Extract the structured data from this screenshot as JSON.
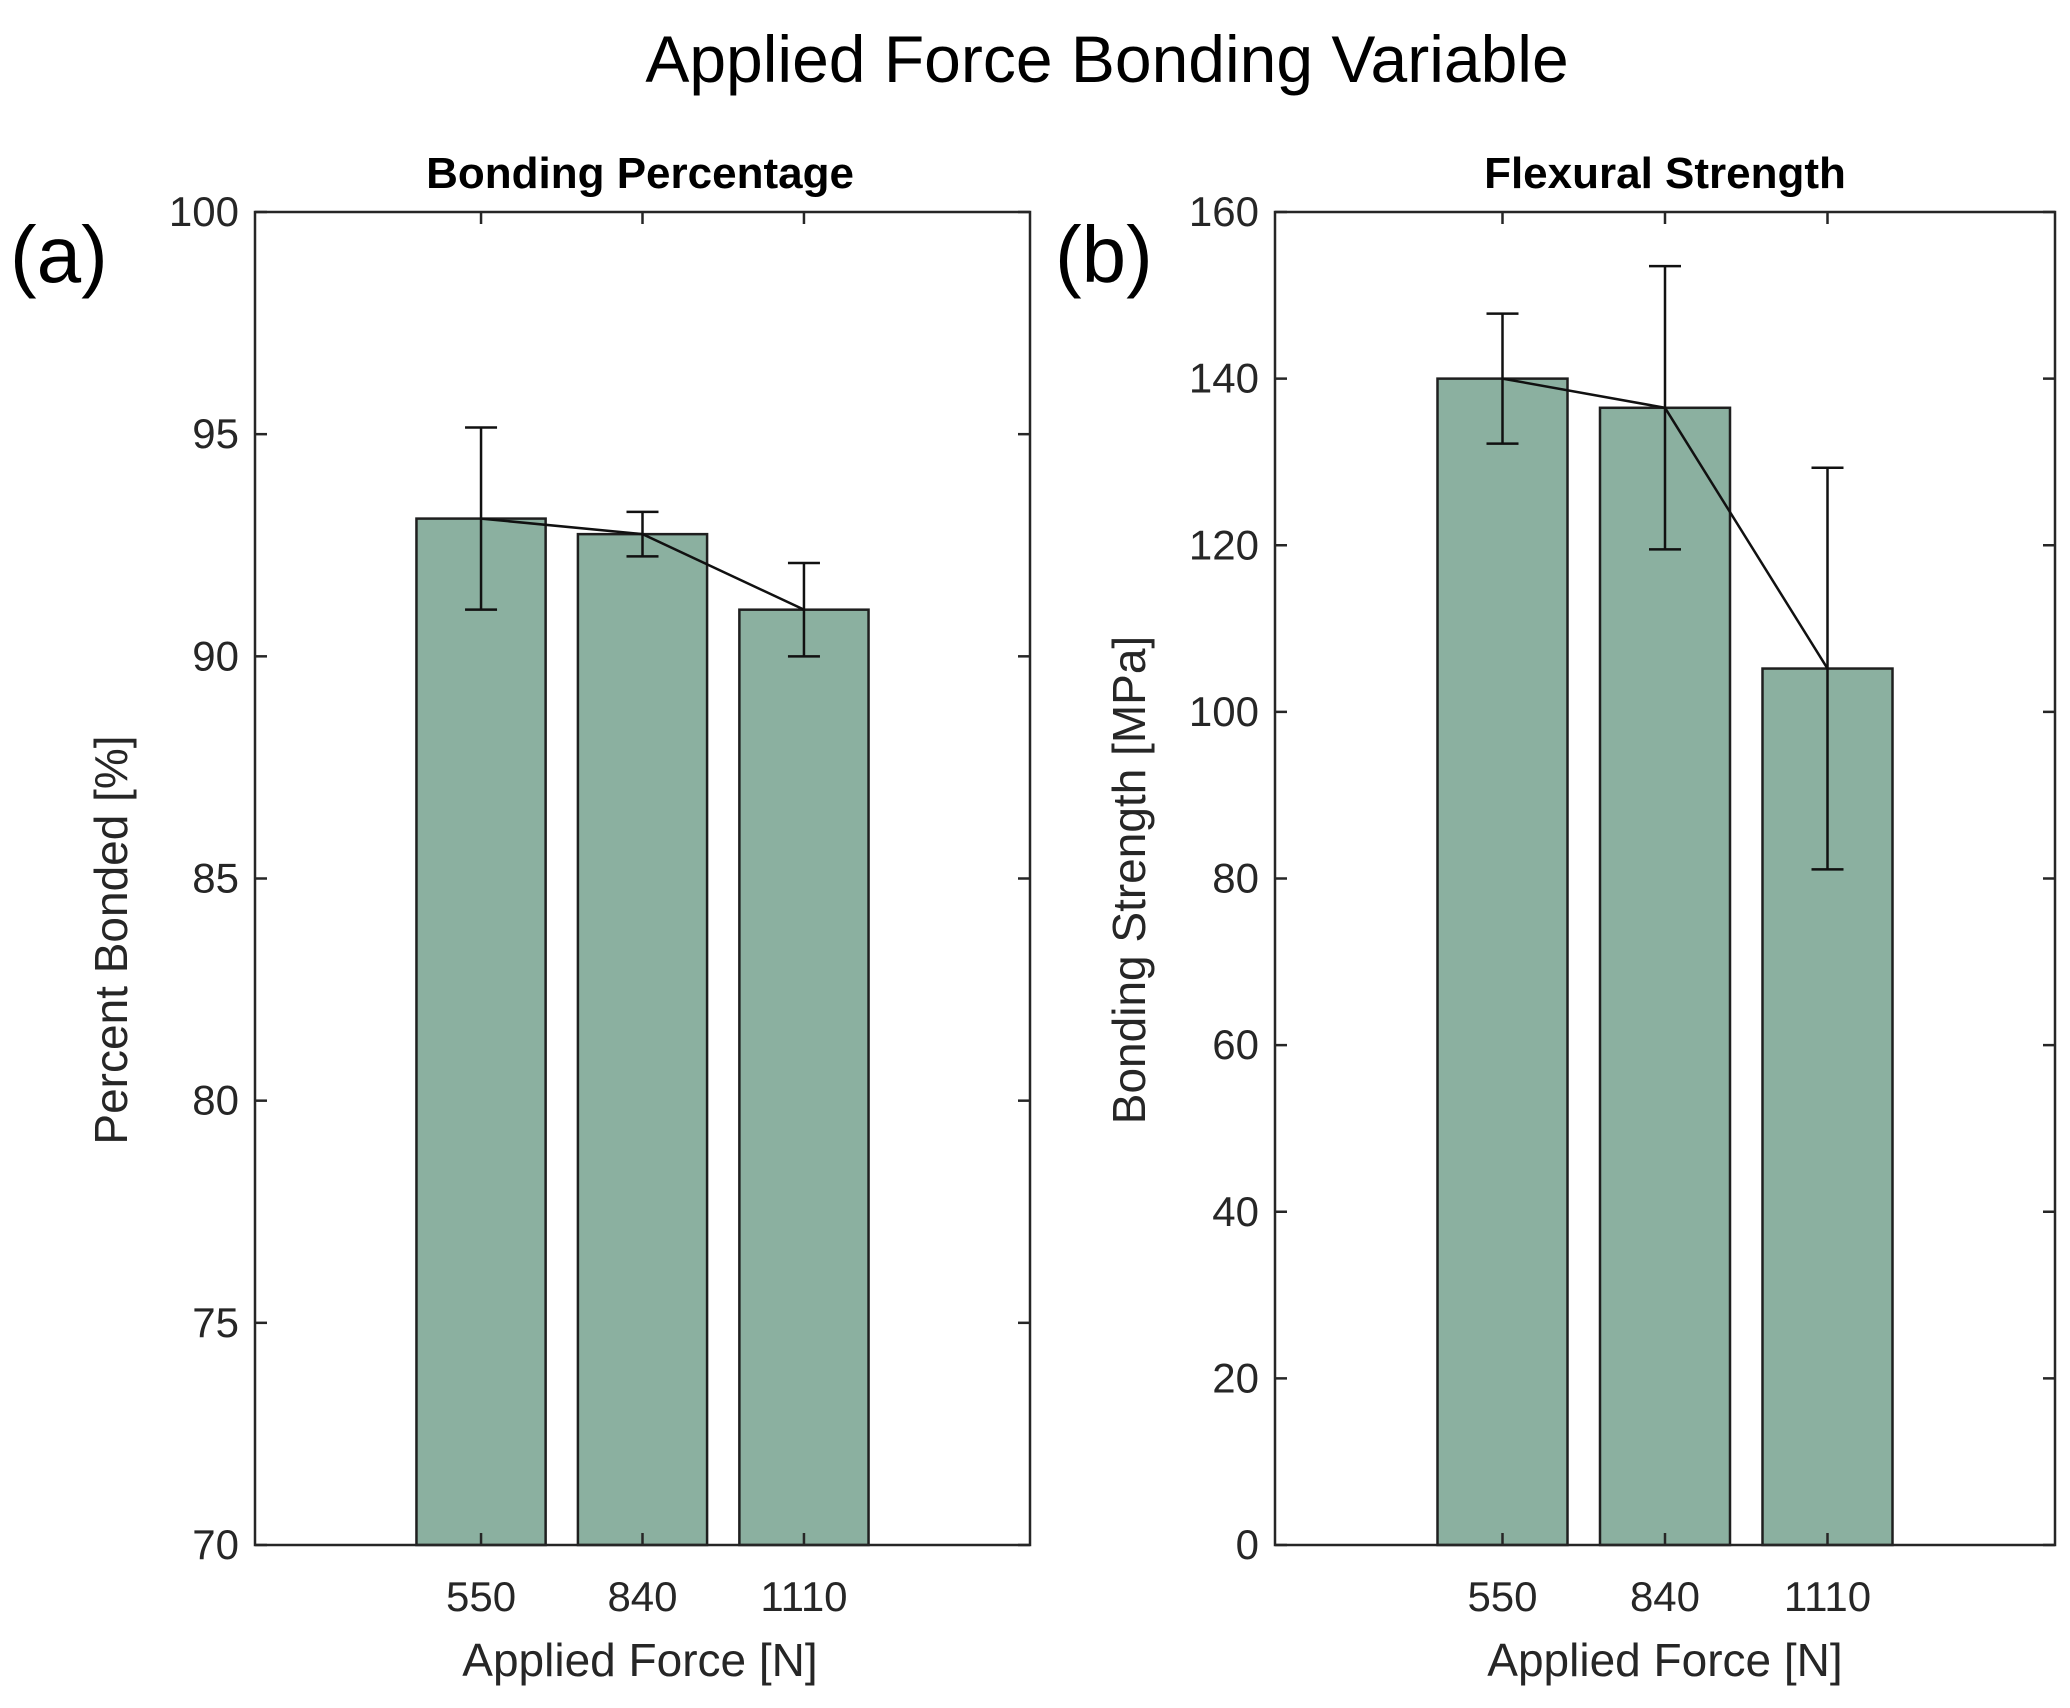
{
  "figure": {
    "suptitle": "Applied Force Bonding Variable",
    "bar_color": "#8bb0a0",
    "line_color": "#111111"
  },
  "chart_data": [
    {
      "type": "bar",
      "panel_label": "(a)",
      "title": "Bonding Percentage",
      "xlabel": "Applied Force [N]",
      "ylabel": "Percent Bonded [%]",
      "categories": [
        "550",
        "840",
        "1110"
      ],
      "values": [
        93.1,
        92.75,
        91.05
      ],
      "errors": [
        2.05,
        0.5,
        1.05
      ],
      "trend_line": true,
      "ylim": [
        70,
        100
      ],
      "yticks": [
        70,
        75,
        80,
        85,
        90,
        95,
        100
      ],
      "grid": false,
      "legend": "none"
    },
    {
      "type": "bar",
      "panel_label": "(b)",
      "title": "Flexural Strength",
      "xlabel": "Applied Force [N]",
      "ylabel": "Bonding Strength [MPa]",
      "categories": [
        "550",
        "840",
        "1110"
      ],
      "values": [
        140,
        136.5,
        105.2
      ],
      "errors": [
        7.8,
        17,
        24.1
      ],
      "trend_line": true,
      "ylim": [
        0,
        160
      ],
      "yticks": [
        0,
        20,
        40,
        60,
        80,
        100,
        120,
        140,
        160
      ],
      "grid": false,
      "legend": "none"
    }
  ]
}
